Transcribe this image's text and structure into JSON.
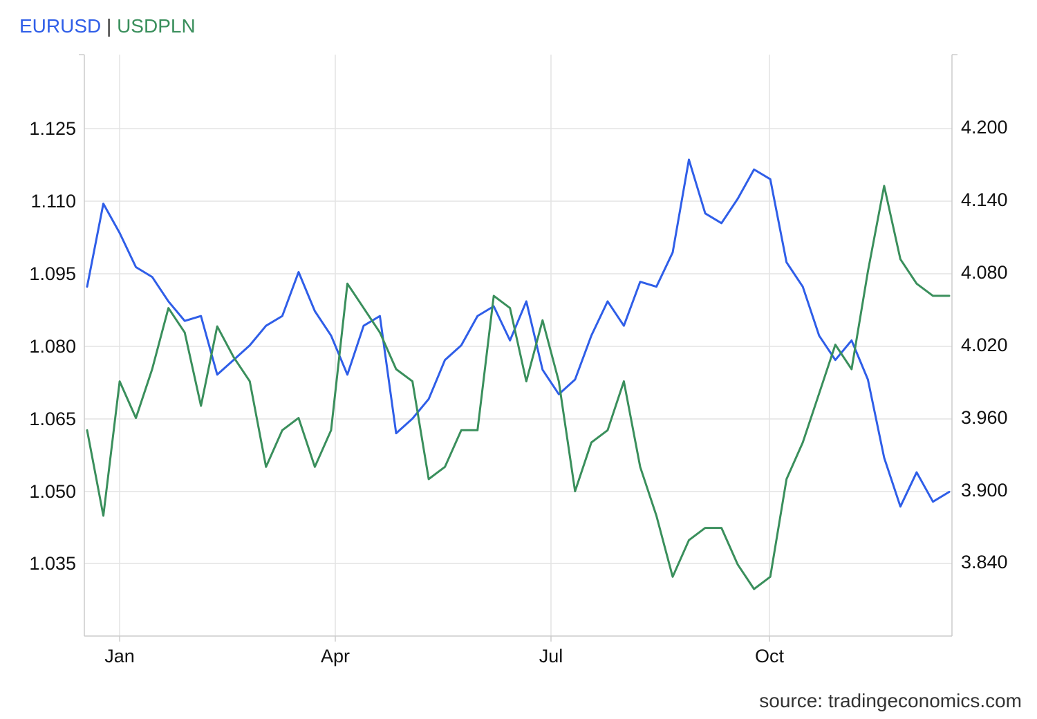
{
  "legend": {
    "series1": "EURUSD",
    "separator": "|",
    "series2": "USDPLN"
  },
  "source": "source: tradingeconomics.com",
  "colors": {
    "eurusd": "#2f5ee8",
    "usdpln": "#3a8f5c",
    "grid": "#e3e3e3",
    "axis": "#cccccc"
  },
  "chart_data": {
    "type": "line",
    "grid": true,
    "x_ticks": [
      "Jan",
      "Apr",
      "Jul",
      "Oct"
    ],
    "left_axis": {
      "ticks": [
        "1.125",
        "1.110",
        "1.095",
        "1.080",
        "1.065",
        "1.050",
        "1.035"
      ],
      "range": [
        1.0215,
        1.1405
      ]
    },
    "right_axis": {
      "ticks": [
        "4.200",
        "4.140",
        "4.080",
        "4.020",
        "3.960",
        "3.900",
        "3.840"
      ],
      "range": [
        3.7815,
        4.2575
      ]
    },
    "x": [
      "Dec 16",
      "Dec 20",
      "Dec 25",
      "Jan 1",
      "Jan 8",
      "Jan 15",
      "Jan 22",
      "Jan 29",
      "Feb 5",
      "Feb 12",
      "Feb 19",
      "Feb 26",
      "Mar 4",
      "Mar 11",
      "Mar 18",
      "Mar 25",
      "Apr 1",
      "Apr 8",
      "Apr 15",
      "Apr 22",
      "Apr 29",
      "May 6",
      "May 13",
      "May 20",
      "May 27",
      "Jun 3",
      "Jun 10",
      "Jun 17",
      "Jun 24",
      "Jul 1",
      "Jul 8",
      "Jul 15",
      "Jul 22",
      "Jul 29",
      "Aug 5",
      "Aug 12",
      "Aug 19",
      "Aug 26",
      "Sep 2",
      "Sep 9",
      "Sep 16",
      "Sep 23",
      "Sep 30",
      "Oct 7",
      "Oct 14",
      "Oct 21",
      "Oct 28",
      "Nov 4",
      "Nov 11",
      "Nov 18",
      "Nov 25",
      "Dec 2",
      "Dec 9",
      "Dec 16"
    ],
    "series": [
      {
        "name": "EURUSD",
        "values": [
          1.093,
          1.11,
          1.104,
          1.097,
          1.095,
          1.09,
          1.086,
          1.087,
          1.075,
          1.078,
          1.081,
          1.085,
          1.087,
          1.096,
          1.088,
          1.083,
          1.075,
          1.085,
          1.087,
          1.063,
          1.066,
          1.07,
          1.078,
          1.081,
          1.087,
          1.089,
          1.082,
          1.09,
          1.076,
          1.071,
          1.074,
          1.083,
          1.09,
          1.085,
          1.094,
          1.093,
          1.1,
          1.119,
          1.108,
          1.106,
          1.111,
          1.117,
          1.115,
          1.098,
          1.093,
          1.083,
          1.078,
          1.082,
          1.074,
          1.058,
          1.048,
          1.055,
          1.049,
          1.051
        ]
      },
      {
        "name": "USDPLN",
        "values": [
          3.95,
          3.88,
          3.99,
          3.96,
          4.0,
          4.05,
          4.03,
          3.97,
          4.035,
          4.01,
          3.99,
          3.92,
          3.95,
          3.96,
          3.92,
          3.95,
          4.07,
          4.05,
          4.03,
          4.0,
          3.99,
          3.91,
          3.92,
          3.95,
          3.95,
          4.06,
          4.05,
          3.99,
          4.04,
          3.99,
          3.9,
          3.94,
          3.95,
          3.99,
          3.92,
          3.88,
          3.83,
          3.86,
          3.87,
          3.87,
          3.84,
          3.82,
          3.83,
          3.91,
          3.94,
          3.98,
          4.02,
          4.0,
          4.08,
          4.15,
          4.09,
          4.07,
          4.06,
          4.06
        ]
      }
    ]
  }
}
